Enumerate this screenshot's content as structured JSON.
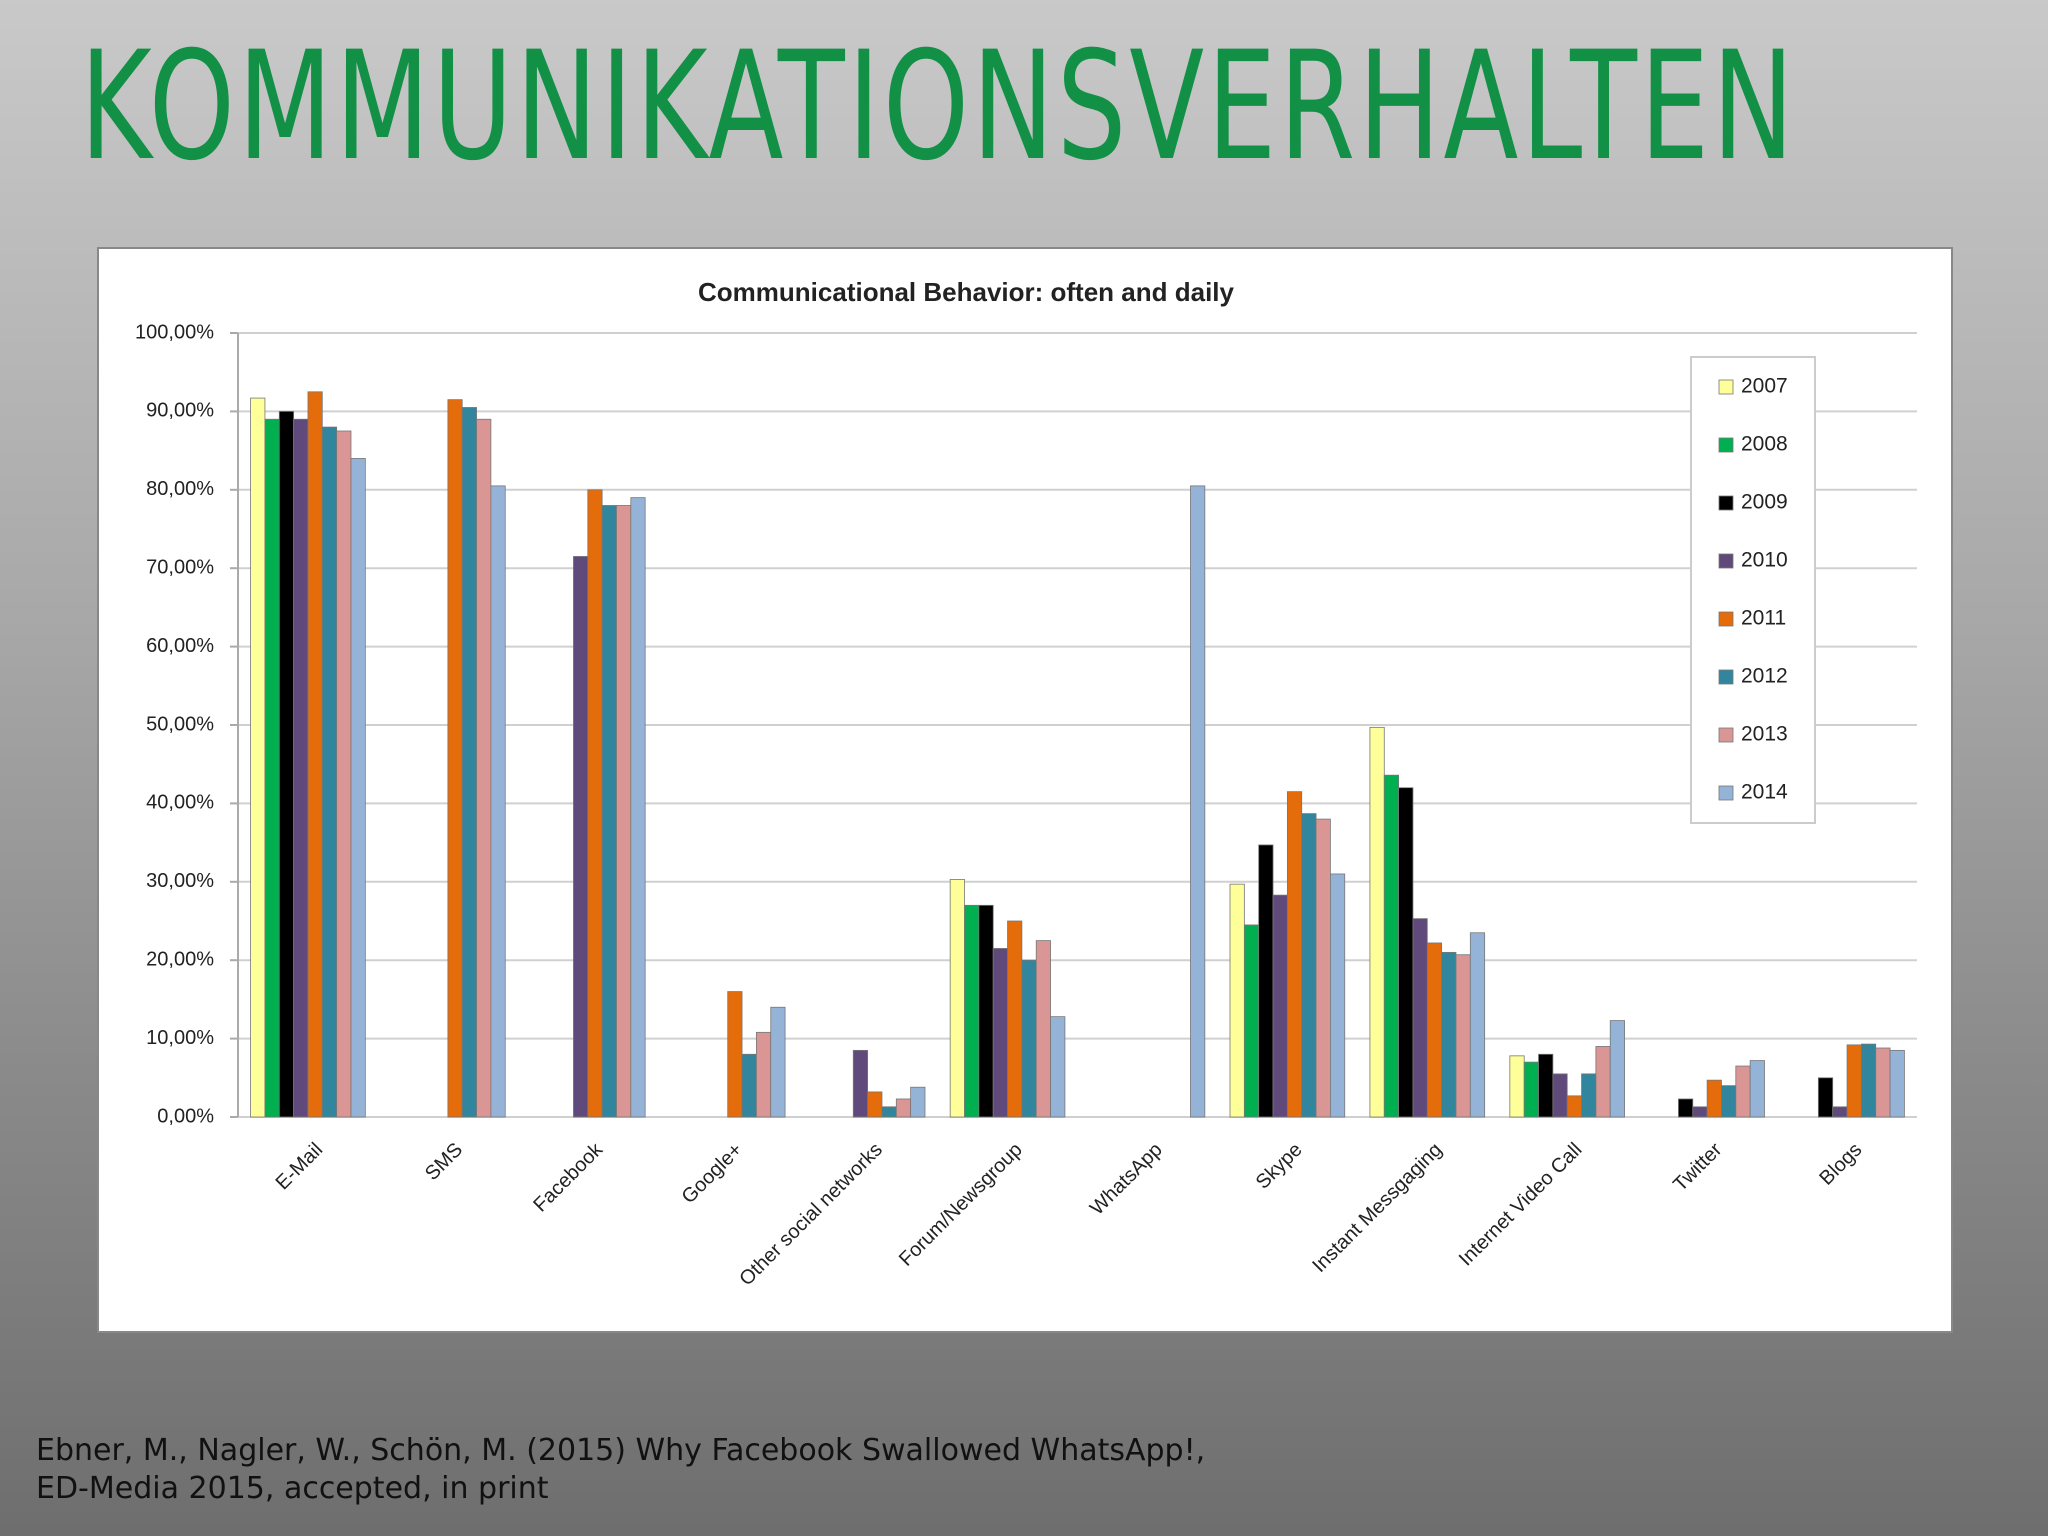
{
  "header": {
    "title": "KOMMUNIKATIONSVERHALTEN"
  },
  "chart_data": {
    "type": "bar",
    "title": "Communicational Behavior: often and daily",
    "categories": [
      "E-Mail",
      "SMS",
      "Facebook",
      "Google+",
      "Other social networks",
      "Forum/Newsgroup",
      "WhatsApp",
      "Skype",
      "Instant Messgaging",
      "Internet Video Call",
      "Twitter",
      "Blogs"
    ],
    "series": [
      {
        "name": "2007",
        "color": "#ffff99",
        "values": [
          91.7,
          null,
          null,
          null,
          null,
          30.3,
          null,
          29.7,
          49.7,
          7.8,
          null,
          null
        ]
      },
      {
        "name": "2008",
        "color": "#00b050",
        "values": [
          89,
          null,
          null,
          null,
          null,
          27,
          null,
          24.5,
          43.6,
          7,
          null,
          null
        ]
      },
      {
        "name": "2009",
        "color": "#000000",
        "values": [
          90,
          null,
          null,
          null,
          null,
          27,
          null,
          34.7,
          42,
          8,
          2.3,
          5
        ]
      },
      {
        "name": "2010",
        "color": "#604a7b",
        "values": [
          89,
          null,
          71.5,
          null,
          8.5,
          21.5,
          null,
          28.3,
          25.3,
          5.5,
          1.3,
          1.3
        ]
      },
      {
        "name": "2011",
        "color": "#e46c0a",
        "values": [
          92.5,
          91.5,
          80,
          16,
          3.2,
          25,
          null,
          41.5,
          22.2,
          2.7,
          4.7,
          9.2
        ]
      },
      {
        "name": "2012",
        "color": "#31859c",
        "values": [
          88,
          90.5,
          78,
          8,
          1.3,
          20,
          null,
          38.7,
          21,
          5.5,
          4,
          9.3
        ]
      },
      {
        "name": "2013",
        "color": "#d99694",
        "values": [
          87.5,
          89,
          78,
          10.8,
          2.3,
          22.5,
          null,
          38,
          20.7,
          9,
          6.5,
          8.8
        ]
      },
      {
        "name": "2014",
        "color": "#95b3d7",
        "values": [
          84,
          80.5,
          79,
          14,
          3.8,
          12.8,
          80.5,
          31,
          23.5,
          12.3,
          7.2,
          8.5
        ]
      }
    ],
    "ylim": [
      0,
      100
    ],
    "yticks": [
      {
        "value": 0,
        "label": "0,00%"
      },
      {
        "value": 10,
        "label": "10,00%"
      },
      {
        "value": 20,
        "label": "20,00%"
      },
      {
        "value": 30,
        "label": "30,00%"
      },
      {
        "value": 40,
        "label": "40,00%"
      },
      {
        "value": 50,
        "label": "50,00%"
      },
      {
        "value": 60,
        "label": "60,00%"
      },
      {
        "value": 70,
        "label": "70,00%"
      },
      {
        "value": 80,
        "label": "80,00%"
      },
      {
        "value": 90,
        "label": "90,00%"
      },
      {
        "value": 100,
        "label": "100,00%"
      }
    ],
    "grid": true,
    "legend": "top-right"
  },
  "footer": {
    "citation": [
      "Ebner, M., Nagler, W., Schön, M. (2015) Why Facebook Swallowed WhatsApp!,",
      "ED-Media 2015, accepted, in print"
    ]
  }
}
